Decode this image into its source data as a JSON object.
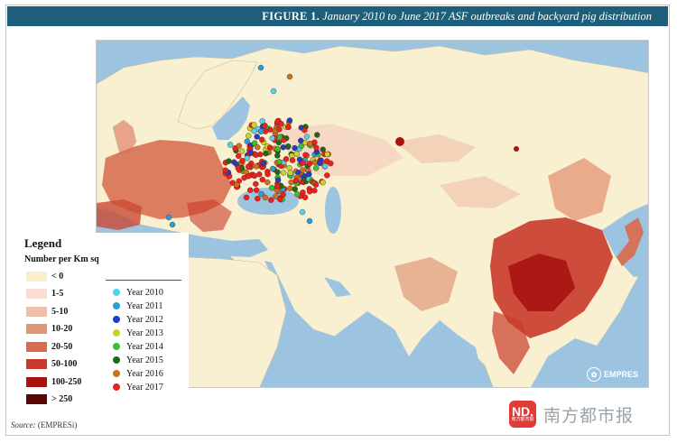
{
  "header": {
    "figure_label": "FIGURE 1.",
    "caption": "January 2010 to June 2017 ASF outbreaks and backyard pig distribution"
  },
  "legend": {
    "title": "Legend",
    "unit": "Number per Km sq",
    "density_classes": [
      {
        "label": "< 0",
        "color": "#fbefc9"
      },
      {
        "label": "1-5",
        "color": "#f8ddd0"
      },
      {
        "label": "5-10",
        "color": "#efbfab"
      },
      {
        "label": "10-20",
        "color": "#df9873"
      },
      {
        "label": "20-50",
        "color": "#d86b50"
      },
      {
        "label": "50-100",
        "color": "#c93a2a"
      },
      {
        "label": "100-250",
        "color": "#a8130f"
      },
      {
        "label": "> 250",
        "color": "#5c0505"
      }
    ],
    "years": [
      {
        "label": "Year 2010",
        "color": "#4fd4ea"
      },
      {
        "label": "Year 2011",
        "color": "#2a9fd6"
      },
      {
        "label": "Year 2012",
        "color": "#1f3fc9"
      },
      {
        "label": "Year 2013",
        "color": "#bfd82a"
      },
      {
        "label": "Year 2014",
        "color": "#35c431"
      },
      {
        "label": "Year 2015",
        "color": "#1c6b1c"
      },
      {
        "label": "Year 2016",
        "color": "#c9731c"
      },
      {
        "label": "Year 2017",
        "color": "#e8231f"
      }
    ]
  },
  "map": {
    "sea_color": "#9cc4e0",
    "land_color": "#f8f0d0",
    "logo_text": "EMPRES"
  },
  "source": {
    "prefix": "Source:",
    "value": "(EMPRESi)"
  },
  "watermark": {
    "logo_text": "ND.",
    "logo_sub": "南方都市报",
    "text": "南方都市报"
  }
}
